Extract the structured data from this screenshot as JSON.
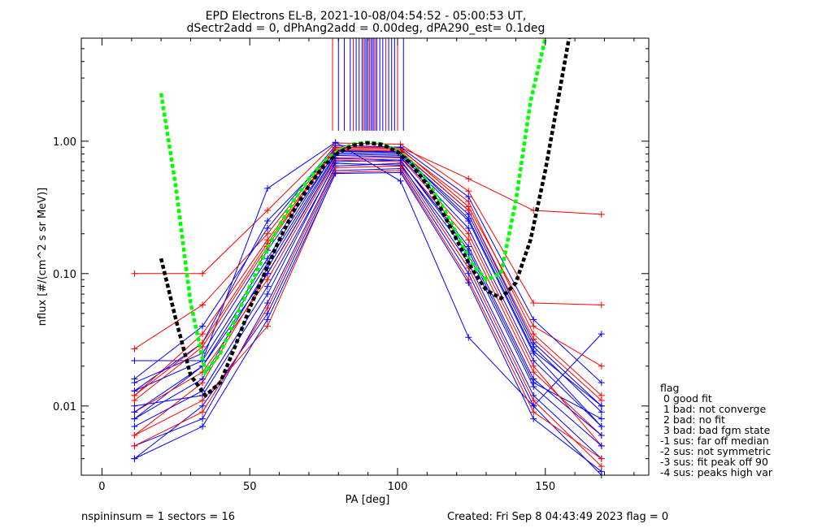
{
  "title_line1": "EPD Electrons EL-B, 2021-10-08/04:54:52 - 05:00:53 UT,",
  "title_line2": "dSectr2add = 0, dPhAng2add = 0.00deg, dPA290_est=   0.1deg",
  "footer_left": "nspininsum =  1  sectors = 16",
  "footer_right": "Created: Fri Sep  8 04:43:49 2023   flag = 0",
  "legend": {
    "title": "flag",
    "items": [
      " 0 good fit",
      " 1 bad: not converge",
      " 2 bad: no fit",
      " 3 bad: bad fgm state",
      "-1 sus: far off median",
      "-2 sus: not symmetric",
      "-3 sus: fit peak off 90",
      "-4 sus: peaks high var"
    ]
  },
  "chart_data": {
    "type": "line",
    "xlabel": "PA [deg]",
    "ylabel": "nflux [#/(cm^2 s sr MeV)]",
    "xlim": [
      -7,
      185
    ],
    "ylim": [
      0.003,
      6
    ],
    "yscale": "log",
    "xticks": [
      0,
      50,
      100,
      150
    ],
    "xtick_labels": [
      "0",
      "50",
      "100",
      "150"
    ],
    "yticks": [
      0.01,
      0.1,
      1.0
    ],
    "ytick_labels": [
      "0.01",
      "0.10",
      "1.00"
    ],
    "pa_bins": [
      11,
      34,
      56,
      79,
      101,
      124,
      146,
      169
    ],
    "colors": {
      "red": "#ff0000",
      "blue": "#0000ff",
      "green": "#00ff00",
      "black": "#000000"
    },
    "series": [
      {
        "values": [
          0.1,
          0.1,
          0.3,
          0.97,
          0.95,
          0.42,
          0.06,
          0.058
        ],
        "color": "#ff0000"
      },
      {
        "values": [
          0.022,
          0.022,
          0.44,
          0.98,
          0.5,
          0.033,
          0.01,
          0.035
        ],
        "color": "#0000ff"
      },
      {
        "values": [
          0.027,
          0.058,
          0.2,
          0.9,
          0.9,
          0.52,
          0.3,
          0.28
        ],
        "color": "#ff0000"
      },
      {
        "values": [
          0.013,
          0.03,
          0.25,
          0.85,
          0.83,
          0.3,
          0.03,
          0.01
        ],
        "color": "#0000ff"
      },
      {
        "values": [
          0.008,
          0.02,
          0.12,
          0.8,
          0.78,
          0.25,
          0.025,
          0.007
        ],
        "color": "#0000ff"
      },
      {
        "values": [
          0.006,
          0.015,
          0.1,
          0.75,
          0.75,
          0.2,
          0.02,
          0.005
        ],
        "color": "#ff0000"
      },
      {
        "values": [
          0.01,
          0.012,
          0.07,
          0.7,
          0.72,
          0.15,
          0.015,
          0.008
        ],
        "color": "#0000ff"
      },
      {
        "values": [
          0.005,
          0.008,
          0.06,
          0.65,
          0.68,
          0.12,
          0.012,
          0.004
        ],
        "color": "#0000ff"
      },
      {
        "values": [
          0.012,
          0.035,
          0.18,
          0.88,
          0.86,
          0.35,
          0.035,
          0.012
        ],
        "color": "#ff0000"
      },
      {
        "values": [
          0.004,
          0.01,
          0.05,
          0.6,
          0.62,
          0.1,
          0.01,
          0.003
        ],
        "color": "#0000ff"
      },
      {
        "values": [
          0.009,
          0.018,
          0.09,
          0.72,
          0.7,
          0.18,
          0.018,
          0.006
        ],
        "color": "#ff0000"
      },
      {
        "values": [
          0.015,
          0.025,
          0.15,
          0.82,
          0.8,
          0.28,
          0.028,
          0.009
        ],
        "color": "#0000ff"
      },
      {
        "values": [
          0.007,
          0.013,
          0.08,
          0.68,
          0.66,
          0.14,
          0.014,
          0.005
        ],
        "color": "#0000ff"
      },
      {
        "values": [
          0.011,
          0.028,
          0.16,
          0.9,
          0.88,
          0.32,
          0.04,
          0.02
        ],
        "color": "#ff0000"
      },
      {
        "values": [
          0.006,
          0.011,
          0.04,
          0.58,
          0.6,
          0.09,
          0.009,
          0.004
        ],
        "color": "#ff0000"
      },
      {
        "values": [
          0.016,
          0.04,
          0.22,
          0.93,
          0.9,
          0.38,
          0.045,
          0.015
        ],
        "color": "#0000ff"
      },
      {
        "values": [
          0.008,
          0.016,
          0.11,
          0.78,
          0.76,
          0.22,
          0.022,
          0.007
        ],
        "color": "#0000ff"
      },
      {
        "values": [
          0.005,
          0.009,
          0.055,
          0.63,
          0.65,
          0.11,
          0.011,
          0.0035
        ],
        "color": "#ff0000"
      },
      {
        "values": [
          0.013,
          0.022,
          0.13,
          0.84,
          0.82,
          0.26,
          0.026,
          0.01
        ],
        "color": "#0000ff"
      },
      {
        "values": [
          0.009,
          0.02,
          0.1,
          0.74,
          0.72,
          0.16,
          0.016,
          0.006
        ],
        "color": "#0000ff"
      },
      {
        "values": [
          0.004,
          0.007,
          0.045,
          0.57,
          0.58,
          0.085,
          0.008,
          0.0032
        ],
        "color": "#0000ff"
      },
      {
        "values": [
          0.012,
          0.03,
          0.17,
          0.86,
          0.84,
          0.3,
          0.032,
          0.011
        ],
        "color": "#ff0000"
      }
    ],
    "fits": [
      {
        "name": "green",
        "color": "#00ff00",
        "x": [
          20,
          25,
          30,
          35,
          40,
          45,
          50,
          55,
          60,
          65,
          70,
          75,
          80,
          85,
          90,
          95,
          100,
          105,
          110,
          115,
          120,
          125,
          130,
          135,
          140,
          145,
          150
        ],
        "y": [
          2.3,
          0.45,
          0.06,
          0.018,
          0.025,
          0.045,
          0.08,
          0.14,
          0.23,
          0.36,
          0.52,
          0.7,
          0.85,
          0.95,
          0.98,
          0.95,
          0.85,
          0.68,
          0.5,
          0.33,
          0.2,
          0.12,
          0.09,
          0.1,
          0.35,
          2.0,
          7.0
        ]
      },
      {
        "name": "black",
        "color": "#000000",
        "x": [
          20,
          25,
          30,
          35,
          40,
          45,
          50,
          55,
          60,
          65,
          70,
          75,
          80,
          85,
          90,
          95,
          100,
          105,
          110,
          115,
          120,
          125,
          130,
          135,
          140,
          145,
          150,
          155,
          158
        ],
        "y": [
          0.13,
          0.045,
          0.017,
          0.012,
          0.015,
          0.028,
          0.055,
          0.1,
          0.18,
          0.3,
          0.46,
          0.65,
          0.82,
          0.93,
          0.97,
          0.94,
          0.83,
          0.66,
          0.47,
          0.3,
          0.18,
          0.11,
          0.075,
          0.065,
          0.085,
          0.18,
          0.6,
          2.5,
          6.0
        ]
      }
    ],
    "peak_vertical_lines_x": [
      78,
      80,
      82,
      84,
      85,
      86,
      87,
      88,
      88.5,
      89,
      89.5,
      90,
      90.5,
      91,
      91.5,
      92,
      92.5,
      93,
      94,
      95,
      96,
      97,
      98,
      99,
      100,
      102
    ]
  }
}
